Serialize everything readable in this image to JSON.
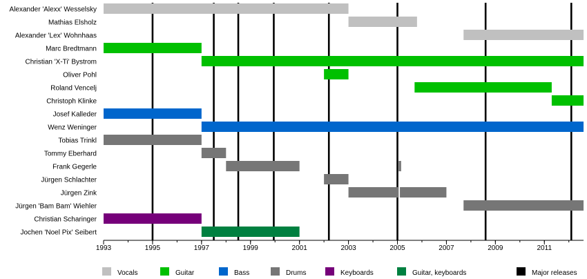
{
  "chart_data": {
    "type": "timeline",
    "title": "",
    "xlabel": "",
    "ylabel": "",
    "xlim": [
      1993,
      2012.6
    ],
    "x_ticks": [
      1993,
      1995,
      1997,
      1999,
      2001,
      2003,
      2005,
      2007,
      2009,
      2011
    ],
    "grid": false,
    "legend_position": "bottom",
    "roles": [
      {
        "name": "Vocals",
        "color": "#c0c0c0"
      },
      {
        "name": "Guitar",
        "color": "#00c000"
      },
      {
        "name": "Bass",
        "color": "#0066cc"
      },
      {
        "name": "Drums",
        "color": "#767676"
      },
      {
        "name": "Keyboards",
        "color": "#76007a"
      },
      {
        "name": "Guitar, keyboards",
        "color": "#008040"
      }
    ],
    "major_releases": {
      "label": "Major releases",
      "color": "#000000",
      "years": [
        1995,
        1997.5,
        1998.5,
        1999.95,
        2002.2,
        2005,
        2008.6,
        2012.1
      ]
    },
    "members": [
      {
        "name": "Alexander 'Alexx' Wesselsky",
        "periods": [
          {
            "role": "Vocals",
            "start": 1993,
            "end": 2003
          }
        ]
      },
      {
        "name": "Mathias Elsholz",
        "periods": [
          {
            "role": "Vocals",
            "start": 2003,
            "end": 2005.8
          }
        ]
      },
      {
        "name": "Alexander 'Lex' Wohnhaas",
        "periods": [
          {
            "role": "Vocals",
            "start": 2007.7,
            "end": 2012.6
          }
        ]
      },
      {
        "name": "Marc Bredtmann",
        "periods": [
          {
            "role": "Guitar",
            "start": 1993,
            "end": 1997
          }
        ]
      },
      {
        "name": "Christian 'X-Ti' Bystrom",
        "periods": [
          {
            "role": "Guitar",
            "start": 1997,
            "end": 2012.6
          }
        ]
      },
      {
        "name": "Oliver Pohl",
        "periods": [
          {
            "role": "Guitar",
            "start": 2002,
            "end": 2003
          }
        ]
      },
      {
        "name": "Roland Vencelj",
        "periods": [
          {
            "role": "Guitar",
            "start": 2005.7,
            "end": 2011.3
          }
        ]
      },
      {
        "name": "Christoph Klinke",
        "periods": [
          {
            "role": "Guitar",
            "start": 2011.3,
            "end": 2012.6
          }
        ]
      },
      {
        "name": "Josef Kalleder",
        "periods": [
          {
            "role": "Bass",
            "start": 1993,
            "end": 1997
          }
        ]
      },
      {
        "name": "Wenz Weninger",
        "periods": [
          {
            "role": "Bass",
            "start": 1997,
            "end": 2012.6
          }
        ]
      },
      {
        "name": "Tobias Trinkl",
        "periods": [
          {
            "role": "Drums",
            "start": 1993,
            "end": 1997
          }
        ]
      },
      {
        "name": "Tommy Eberhard",
        "periods": [
          {
            "role": "Drums",
            "start": 1997,
            "end": 1998
          }
        ]
      },
      {
        "name": "Frank Gegerle",
        "periods": [
          {
            "role": "Drums",
            "start": 1998,
            "end": 2001
          },
          {
            "role": "Drums",
            "start": 2005.05,
            "end": 2005.15
          }
        ]
      },
      {
        "name": "Jürgen Schlachter",
        "periods": [
          {
            "role": "Drums",
            "start": 2002,
            "end": 2003
          }
        ]
      },
      {
        "name": "Jürgen Zink",
        "periods": [
          {
            "role": "Drums",
            "start": 2003,
            "end": 2005.05
          },
          {
            "role": "Drums",
            "start": 2005.1,
            "end": 2007
          }
        ]
      },
      {
        "name": "Jürgen 'Bam Bam' Wiehler",
        "periods": [
          {
            "role": "Drums",
            "start": 2007.7,
            "end": 2012.6
          }
        ]
      },
      {
        "name": "Christian Scharinger",
        "periods": [
          {
            "role": "Keyboards",
            "start": 1993,
            "end": 1997
          }
        ]
      },
      {
        "name": "Jochen 'Noel Pix' Seibert",
        "periods": [
          {
            "role": "Guitar, keyboards",
            "start": 1997,
            "end": 2001
          }
        ]
      }
    ]
  }
}
